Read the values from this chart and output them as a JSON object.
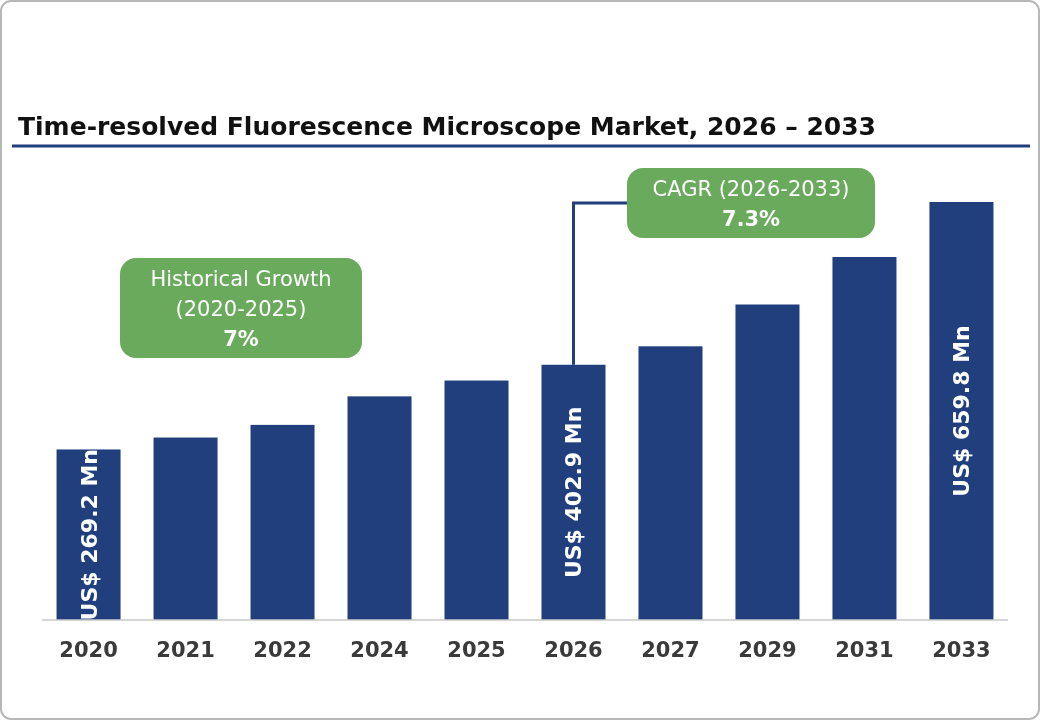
{
  "chart_data": {
    "type": "bar",
    "title": "Time-resolved Fluorescence Microscope Market, 2026 – 2033",
    "categories": [
      "2020",
      "2021",
      "2022",
      "2024",
      "2025",
      "2026",
      "2027",
      "2029",
      "2031",
      "2033"
    ],
    "values": [
      269.2,
      288,
      308,
      353,
      378,
      402.9,
      432,
      498,
      573,
      659.8
    ],
    "value_labels": [
      "US$ 269.2 Mn",
      null,
      null,
      null,
      null,
      "US$ 402.9 Mn",
      null,
      null,
      null,
      "US$ 659.8 Mn"
    ],
    "color": "#213f7c",
    "annotations": [
      "Historical Growth\n(2020-2025)\n7%",
      "CAGR (2026-2033)\n7.3%"
    ]
  }
}
